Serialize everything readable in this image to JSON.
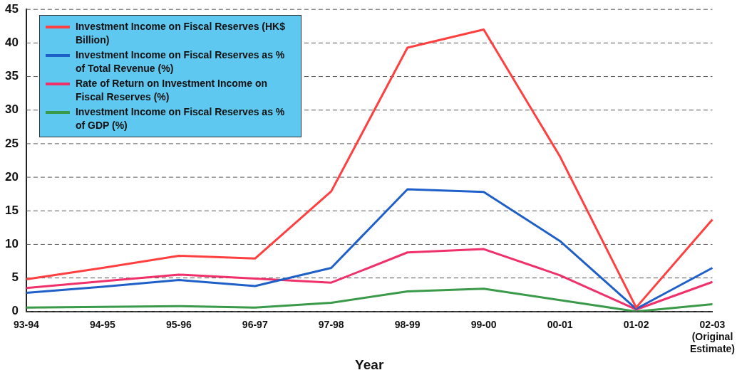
{
  "chart_data": {
    "type": "line",
    "xlabel": "Year",
    "categories": [
      "93-94",
      "94-95",
      "95-96",
      "96-97",
      "97-98",
      "98-99",
      "99-00",
      "00-01",
      "01-02",
      "02-03 (Original Estimate)"
    ],
    "series": [
      {
        "name": "Investment Income on Fiscal Reserves (HK$ Billion)",
        "color": "#ff4040",
        "values": [
          4.8,
          6.5,
          8.3,
          7.9,
          17.9,
          39.3,
          42.0,
          23.1,
          0.6,
          13.7
        ]
      },
      {
        "name": "Investment Income on Fiscal Reserves as % of Total Revenue (%)",
        "color": "#1f5fc8",
        "values": [
          2.8,
          3.7,
          4.7,
          3.8,
          6.5,
          18.2,
          17.8,
          10.5,
          0.4,
          6.5
        ]
      },
      {
        "name": "Rate of Return on Investment Income on Fiscal Reserves (%)",
        "color": "#f0306a",
        "values": [
          3.5,
          4.5,
          5.5,
          4.9,
          4.3,
          8.8,
          9.3,
          5.4,
          0.3,
          4.4
        ]
      },
      {
        "name": "Investment Income on Fiscal Reserves as % of GDP (%)",
        "color": "#3a9a4a",
        "values": [
          0.6,
          0.7,
          0.8,
          0.6,
          1.3,
          3.0,
          3.4,
          1.7,
          0,
          1.1
        ]
      }
    ],
    "ylim": [
      0,
      45
    ],
    "yticks": [
      0,
      5,
      10,
      15,
      20,
      25,
      30,
      35,
      40,
      45
    ],
    "grid": "y",
    "legend": "top left",
    "marker": "none",
    "line_style": "solid"
  }
}
